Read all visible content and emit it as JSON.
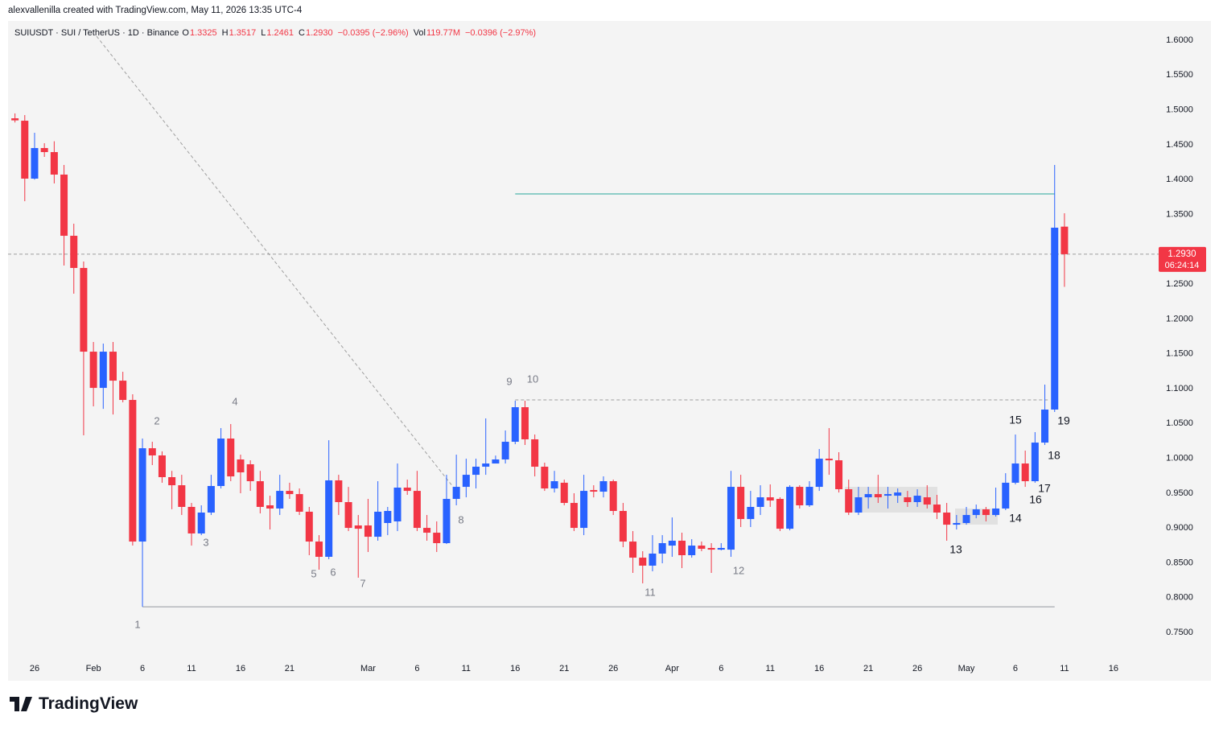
{
  "header": {
    "credit": "alexvallenilla created with TradingView.com, May 11, 2026 13:35 UTC-4"
  },
  "footer": {
    "logo": "TradingView"
  },
  "chart_data": {
    "type": "candlestick",
    "title": "SUIUSDT · SUI / TetherUS · 1D · Binance",
    "legend": [
      {
        "key": "O",
        "text": "1.3325"
      },
      {
        "key": "H",
        "text": "1.3517"
      },
      {
        "key": "L",
        "text": "1.2461"
      },
      {
        "key": "C",
        "text": "1.2930"
      },
      {
        "key": "",
        "text": "−0.0395 (−2.96%)"
      },
      {
        "key": "Vol",
        "text": "119.77M"
      },
      {
        "key": "",
        "text": "−0.0396 (−2.97%)"
      }
    ],
    "price_tag": {
      "value": 1.293,
      "label": "1.2930"
    },
    "countdown": "06:24:14",
    "up_color": "#2962ff",
    "down_color": "#f23645",
    "grid": false,
    "categories": [
      null,
      null,
      "26",
      null,
      null,
      null,
      null,
      null,
      "Feb",
      null,
      null,
      null,
      null,
      "6",
      null,
      null,
      null,
      null,
      "11",
      null,
      null,
      null,
      null,
      "16",
      null,
      null,
      null,
      null,
      "21",
      null,
      null,
      null,
      null,
      null,
      null,
      null,
      "Mar",
      null,
      null,
      null,
      null,
      "6",
      null,
      null,
      null,
      null,
      "11",
      null,
      null,
      null,
      null,
      "16",
      null,
      null,
      null,
      null,
      "21",
      null,
      null,
      null,
      null,
      "26",
      null,
      null,
      null,
      null,
      null,
      "Apr",
      null,
      null,
      null,
      null,
      "6",
      null,
      null,
      null,
      null,
      "11",
      null,
      null,
      null,
      null,
      "16",
      null,
      null,
      null,
      null,
      "21",
      null,
      null,
      null,
      null,
      "26",
      null,
      null,
      null,
      null,
      "May",
      null,
      null,
      null,
      null,
      "6",
      null,
      null,
      null,
      null,
      "11",
      null,
      null,
      null,
      null,
      "16",
      null
    ],
    "open": [
      1.488,
      1.4845,
      1.4014,
      1.4453,
      1.4395,
      1.4072,
      1.3194,
      1.2732,
      1.1531,
      1.1011,
      1.1531,
      1.1115,
      1.0838,
      0.8806,
      1.0145,
      1.0042,
      0.973,
      0.9614,
      0.9303,
      0.8922,
      0.9222,
      0.9603,
      1.0284,
      0.9984,
      0.9915,
      0.9672,
      0.9326,
      0.928,
      0.9533,
      0.9487,
      0.9234,
      0.8806,
      0.8587,
      0.9684,
      0.9372,
      0.9037,
      0.9037,
      0.8875,
      0.9072,
      0.9095,
      0.958,
      0.9533,
      0.9002,
      0.8933,
      0.8783,
      0.9418,
      0.9591,
      0.9764,
      0.988,
      0.9926,
      0.9984,
      1.0238,
      1.0734,
      1.0273,
      0.988,
      0.9568,
      0.965,
      0.936,
      0.9002,
      0.9545,
      0.9522,
      0.9672,
      0.9245,
      0.8806,
      0.8575,
      0.846,
      0.8633,
      0.8748,
      0.8818,
      0.861,
      0.8748,
      0.8714,
      0.869,
      0.869,
      0.9591,
      0.9129,
      0.9303,
      0.9441,
      0.9418,
      0.899,
      0.9591,
      0.9326,
      0.9591,
      0.9995,
      0.9972,
      0.9557,
      0.9222,
      0.9441,
      0.9487,
      0.9464,
      0.9464,
      0.9441,
      0.9372,
      0.9441,
      0.9337,
      0.9222,
      0.9048,
      0.9072,
      0.9187,
      0.9268,
      0.9187,
      0.928,
      0.965,
      0.9926,
      0.9672,
      1.0226,
      1.07,
      1.3325,
      null,
      null,
      null,
      null,
      null,
      null
    ],
    "high": [
      1.495,
      1.4926,
      1.4672,
      1.4522,
      1.455,
      1.421,
      1.3367,
      1.2824,
      1.167,
      1.1647,
      1.167,
      1.1242,
      1.092,
      1.0284,
      1.0238,
      1.01,
      0.982,
      0.9764,
      0.936,
      0.9326,
      0.9764,
      1.0434,
      1.0492,
      1.0053,
      0.9972,
      0.982,
      0.9464,
      0.9764,
      0.965,
      0.9568,
      0.9303,
      0.8898,
      1.026,
      0.9764,
      0.959,
      0.9187,
      0.9418,
      0.9672,
      0.9303,
      0.9926,
      0.9695,
      0.982,
      0.9187,
      0.9095,
      0.9764,
      1.0053,
      0.9995,
      0.9995,
      1.0573,
      1.004,
      1.04,
      1.0827,
      1.0827,
      1.0342,
      0.9938,
      0.982,
      0.9695,
      0.9499,
      0.9764,
      0.9614,
      0.9741,
      0.9695,
      0.936,
      0.8956,
      0.8667,
      0.8898,
      0.8898,
      0.9152,
      0.8933,
      0.884,
      0.8806,
      0.8783,
      0.8783,
      0.982,
      0.9764,
      0.9533,
      0.9614,
      0.9626,
      0.9441,
      0.9614,
      0.9614,
      0.9672,
      1.0134,
      1.0434,
      1.0088,
      0.9695,
      0.9591,
      0.9591,
      0.9764,
      0.9591,
      0.9568,
      0.9533,
      0.9556,
      0.9614,
      0.9476,
      0.936,
      0.9187,
      0.9303,
      0.9337,
      0.9303,
      0.958,
      0.9787,
      1.0342,
      1.0111,
      1.0376,
      1.1058,
      1.421,
      1.3517,
      null,
      null,
      null,
      null,
      null,
      null
    ],
    "low": [
      1.482,
      1.369,
      1.4,
      1.4326,
      1.3945,
      1.2767,
      1.2363,
      1.033,
      1.0746,
      1.071,
      1.063,
      1.0804,
      0.8748,
      0.787,
      0.9903,
      0.965,
      0.927,
      0.9187,
      0.8748,
      0.8898,
      0.9187,
      0.9568,
      0.9672,
      0.9499,
      0.9533,
      0.921,
      0.8979,
      0.9187,
      0.9418,
      0.9187,
      0.861,
      0.8402,
      0.8552,
      0.9187,
      0.8956,
      0.8287,
      0.8656,
      0.8818,
      0.8898,
      0.8956,
      0.9476,
      0.8956,
      0.8818,
      0.8656,
      0.8771,
      0.9326,
      0.9441,
      0.9568,
      0.9764,
      0.9926,
      0.9926,
      1.0203,
      1.0192,
      0.9741,
      0.9533,
      0.951,
      0.9326,
      0.8956,
      0.8898,
      0.944,
      0.944,
      0.9187,
      0.8725,
      0.8356,
      0.8206,
      0.8379,
      0.8494,
      0.8587,
      0.8425,
      0.8575,
      0.8667,
      0.8356,
      0.8679,
      0.8587,
      0.9014,
      0.9014,
      0.9187,
      0.9303,
      0.8956,
      0.8967,
      0.928,
      0.9303,
      0.9533,
      0.9764,
      0.951,
      0.9187,
      0.9187,
      0.928,
      0.936,
      0.928,
      0.936,
      0.9303,
      0.9303,
      0.928,
      0.9129,
      0.8818,
      0.8979,
      0.9048,
      0.914,
      0.9095,
      0.9164,
      0.9257,
      0.9626,
      0.9591,
      0.965,
      1.0192,
      1.0665,
      1.2461,
      null,
      null,
      null,
      null,
      null,
      null
    ],
    "close": [
      1.485,
      1.4014,
      1.4453,
      1.4395,
      1.4072,
      1.3194,
      1.2732,
      1.1531,
      1.1011,
      1.1531,
      1.1115,
      1.0838,
      0.8806,
      1.0145,
      1.0042,
      0.973,
      0.9614,
      0.9303,
      0.8922,
      0.9222,
      0.9603,
      1.0284,
      0.9741,
      0.9799,
      0.9672,
      0.9303,
      0.928,
      0.9533,
      0.9487,
      0.9234,
      0.8806,
      0.8587,
      0.9684,
      0.9372,
      0.9002,
      0.899,
      0.8875,
      0.9234,
      0.9245,
      0.958,
      0.9533,
      0.9002,
      0.8933,
      0.8783,
      0.9418,
      0.9591,
      0.9764,
      0.988,
      0.9926,
      0.9984,
      1.0238,
      1.0734,
      1.0273,
      0.988,
      0.9568,
      0.9672,
      0.936,
      0.9002,
      0.9533,
      0.9522,
      0.9672,
      0.9245,
      0.8806,
      0.8575,
      0.846,
      0.8633,
      0.8783,
      0.8818,
      0.861,
      0.8748,
      0.8702,
      0.869,
      0.8714,
      0.9591,
      0.9129,
      0.9303,
      0.9441,
      0.9395,
      0.899,
      0.9591,
      0.9326,
      0.9591,
      0.9995,
      0.9972,
      0.9557,
      0.9222,
      0.9441,
      0.9487,
      0.9441,
      0.9487,
      0.951,
      0.9372,
      0.9464,
      0.9337,
      0.9222,
      0.9048,
      0.9072,
      0.9187,
      0.9268,
      0.9187,
      0.928,
      0.965,
      0.9926,
      0.9672,
      1.0226,
      1.07,
      1.331,
      1.293,
      null,
      null,
      null,
      null,
      null,
      null
    ],
    "ylim": [
      0.7132,
      1.6462
    ],
    "yticks": [
      {
        "value": 0.75,
        "label": "0.7500"
      },
      {
        "value": 0.8,
        "label": "0.8000"
      },
      {
        "value": 0.85,
        "label": "0.8500"
      },
      {
        "value": 0.9,
        "label": "0.9000"
      },
      {
        "value": 0.95,
        "label": "0.9500"
      },
      {
        "value": 1.0,
        "label": "1.0000"
      },
      {
        "value": 1.05,
        "label": "1.0500"
      },
      {
        "value": 1.1,
        "label": "1.1000"
      },
      {
        "value": 1.15,
        "label": "1.1500"
      },
      {
        "value": 1.2,
        "label": "1.2000"
      },
      {
        "value": 1.25,
        "label": "1.2500"
      },
      {
        "value": 1.35,
        "label": "1.3500"
      },
      {
        "value": 1.4,
        "label": "1.4000"
      },
      {
        "value": 1.45,
        "label": "1.4500"
      },
      {
        "value": 1.5,
        "label": "1.5000"
      },
      {
        "value": 1.55,
        "label": "1.5500"
      },
      {
        "value": 1.6,
        "label": "1.6000"
      }
    ],
    "levels": [
      {
        "value": 1.3795,
        "color": "#26a69a",
        "style": "solid"
      },
      {
        "value": 1.0838,
        "color": "#9e9e9e",
        "style": "dashed"
      },
      {
        "value": 0.787,
        "color": "#9598a1",
        "style": "solid"
      }
    ],
    "annotations": [
      "1",
      "2",
      "3",
      "4",
      "5",
      "6",
      "7",
      "8",
      "9",
      "10",
      "11",
      "12",
      "13",
      "14",
      "15",
      "16",
      "17",
      "18",
      "19"
    ]
  }
}
